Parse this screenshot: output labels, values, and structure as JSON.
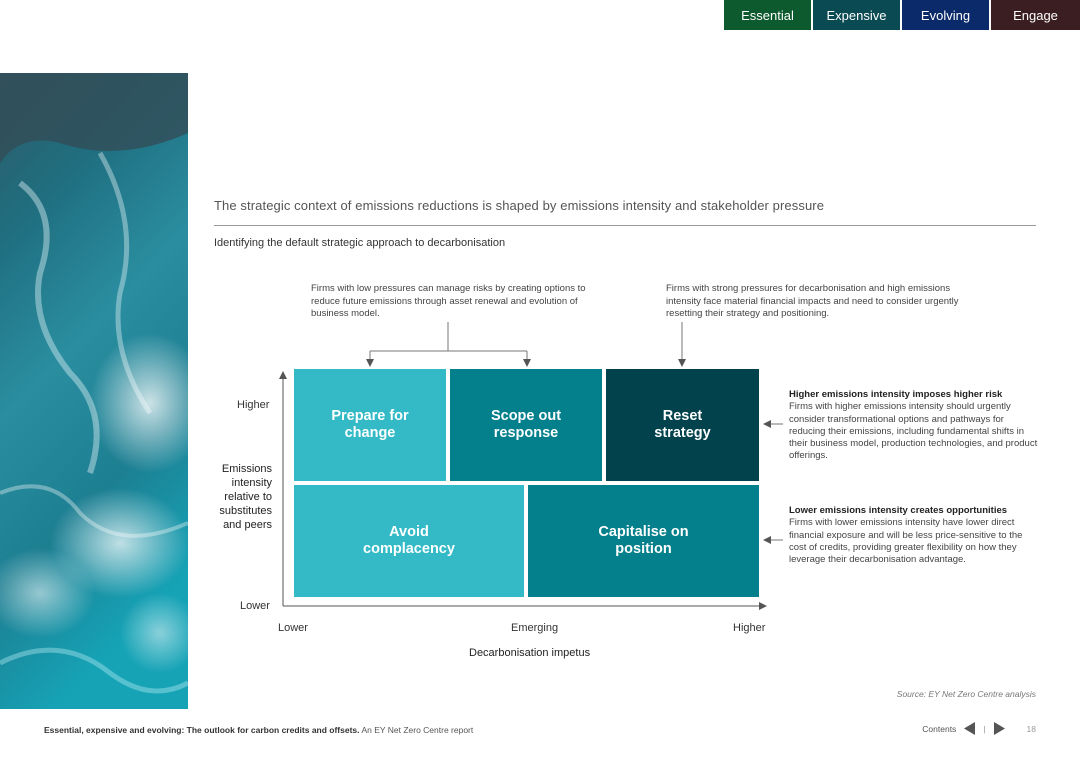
{
  "nav": {
    "tabs": [
      {
        "label": "Essential",
        "color": "#0c5a2e"
      },
      {
        "label": "Expensive",
        "color": "#0a4a52"
      },
      {
        "label": "Evolving",
        "color": "#0b2a6a"
      },
      {
        "label": "Engage",
        "color": "#3a1e21"
      }
    ]
  },
  "header": {
    "title": "The strategic context of emissions reductions is shaped by emissions intensity and stakeholder pressure",
    "subtitle": "Identifying the default strategic approach to decarbonisation"
  },
  "notes": {
    "left": "Firms with low pressures can manage risks by creating options to reduce future emissions through asset renewal and evolution of business model.",
    "right": "Firms with strong pressures for decarbonisation and high emissions intensity face material financial impacts and need to consider urgently resetting their strategy and positioning."
  },
  "matrix": {
    "cells": [
      {
        "label": "Prepare for change",
        "color": "#33bac6"
      },
      {
        "label": "Scope out response",
        "color": "#04808c"
      },
      {
        "label": "Reset strategy",
        "color": "#02424d"
      },
      {
        "label": "Avoid complacency",
        "color": "#33bac6"
      },
      {
        "label": "Capitalise on position",
        "color": "#04808c"
      }
    ],
    "y_axis": {
      "title": "Emissions intensity relative to substitutes and peers",
      "high": "Higher",
      "low": "Lower"
    },
    "x_axis": {
      "title": "Decarbonisation impetus",
      "low": "Lower",
      "mid": "Emerging",
      "high": "Higher"
    }
  },
  "side_notes": {
    "higher": {
      "heading": "Higher emissions intensity imposes higher risk",
      "body": "Firms with higher emissions intensity should urgently consider transformational options and pathways for reducing their emissions, including fundamental shifts in their business model, production technologies, and product offerings."
    },
    "lower": {
      "heading": "Lower emissions intensity creates opportunities",
      "body": "Firms with lower emissions intensity have lower direct financial exposure and will be less price-sensitive to the cost of credits, providing greater flexibility on how they leverage their decarbonisation advantage."
    }
  },
  "source": "Source: EY Net Zero Centre analysis",
  "footer": {
    "report_title": "Essential, expensive and evolving: The outlook for carbon credits and offsets.",
    "report_sub": "An EY Net Zero Centre report",
    "contents_label": "Contents",
    "page_number": "18"
  }
}
